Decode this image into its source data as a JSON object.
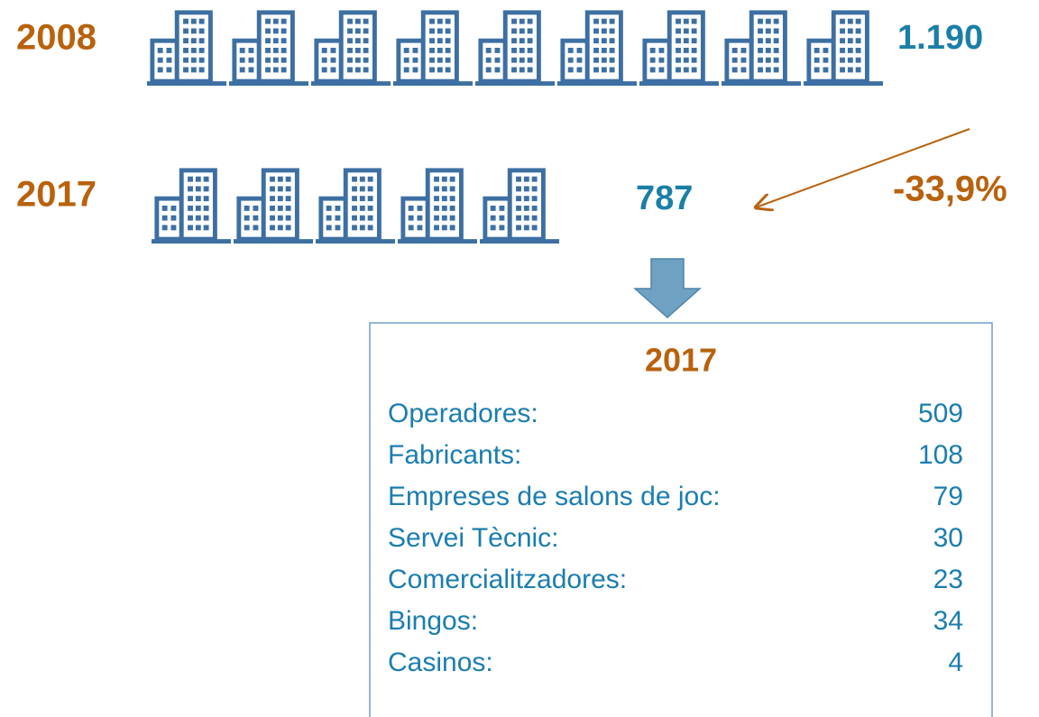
{
  "rows": [
    {
      "year": "2008",
      "total": "1.190"
    },
    {
      "year": "2017",
      "total": "787"
    }
  ],
  "change": "-33,9%",
  "breakdown": {
    "title": "2017",
    "rows": [
      [
        "Operadores:",
        "509"
      ],
      [
        "Fabricants:",
        "108"
      ],
      [
        "Empreses de salons de joc:",
        "79"
      ],
      [
        "Servei Tècnic:",
        "30"
      ],
      [
        "Comercialitzadores:",
        "23"
      ],
      [
        "Bingos:",
        "34"
      ],
      [
        "Casinos:",
        "4"
      ]
    ]
  }
}
